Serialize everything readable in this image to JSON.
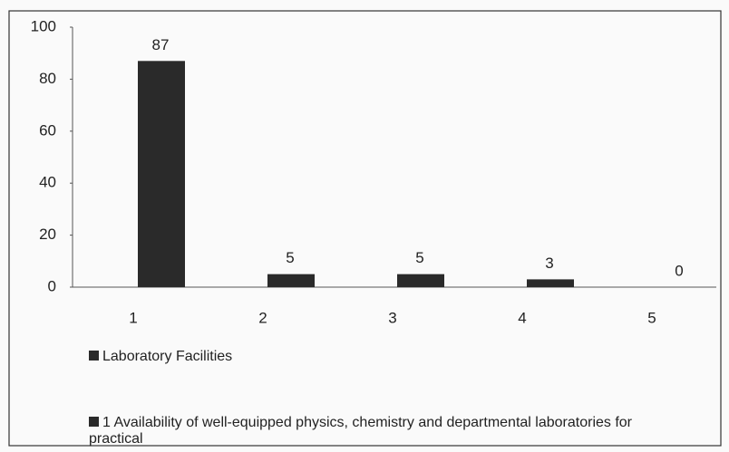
{
  "chart_data": {
    "type": "bar",
    "categories": [
      "1",
      "2",
      "3",
      "4",
      "5"
    ],
    "series": [
      {
        "name": "Laboratory Facilities",
        "color": "#2a2a2a",
        "values": [
          87,
          5,
          5,
          3,
          0
        ]
      }
    ],
    "note": "1 Availability of well-equipped physics, chemistry and departmental laboratories for practical",
    "ylim": [
      0,
      100
    ],
    "yticks": [
      0,
      20,
      40,
      60,
      80,
      100
    ],
    "grid": false
  }
}
